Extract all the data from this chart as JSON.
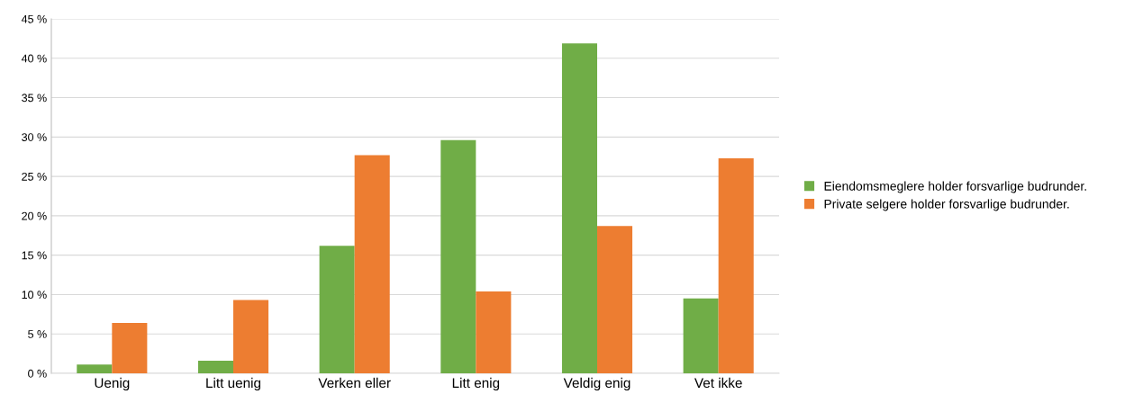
{
  "chart_data": {
    "type": "bar",
    "categories": [
      "Uenig",
      "Litt uenig",
      "Verken eller",
      "Litt enig",
      "Veldig enig",
      "Vet ikke"
    ],
    "series": [
      {
        "name": "Eiendomsmeglere holder forsvarlige budrunder.",
        "color": "#70ad47",
        "values": [
          1.1,
          1.6,
          16.2,
          29.6,
          41.9,
          9.5
        ]
      },
      {
        "name": "Private selgere holder forsvarlige budrunder.",
        "color": "#ed7d31",
        "values": [
          6.4,
          9.3,
          27.7,
          10.4,
          18.7,
          27.3
        ]
      }
    ],
    "ylim": [
      0,
      45
    ],
    "yticks": [
      {
        "value": 0,
        "label": "0 %"
      },
      {
        "value": 5,
        "label": "5 %"
      },
      {
        "value": 10,
        "label": "10 %"
      },
      {
        "value": 15,
        "label": "15 %"
      },
      {
        "value": 20,
        "label": "20 %"
      },
      {
        "value": 25,
        "label": "25 %"
      },
      {
        "value": 30,
        "label": "30 %"
      },
      {
        "value": 35,
        "label": "35 %"
      },
      {
        "value": 40,
        "label": "40 %"
      },
      {
        "value": 45,
        "label": "45 %"
      }
    ],
    "grid": "y",
    "legend": "right"
  }
}
